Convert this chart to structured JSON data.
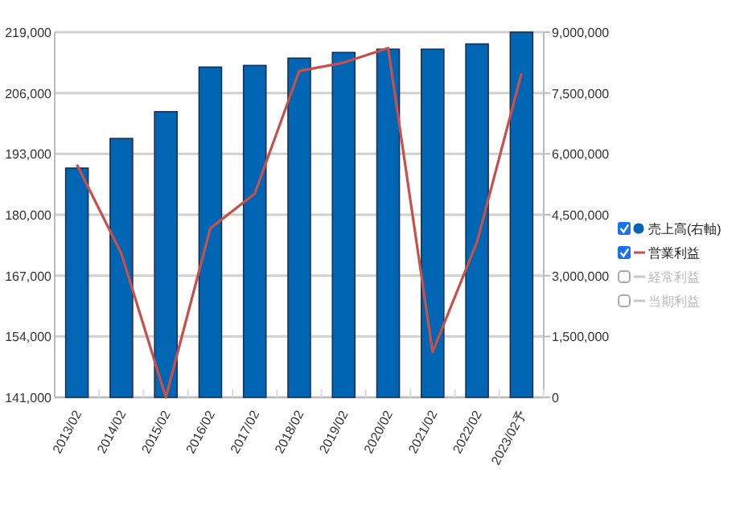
{
  "chart_data": {
    "type": "bar",
    "categories": [
      "2013/02",
      "2014/02",
      "2015/02",
      "2016/02",
      "2017/02",
      "2018/02",
      "2019/02",
      "2020/02",
      "2021/02",
      "2022/02",
      "2023/02予"
    ],
    "series": [
      {
        "name": "売上高(右軸)",
        "axis": "y2",
        "color": "#0066b3",
        "values": [
          5650000,
          6380000,
          7040000,
          8140000,
          8180000,
          8360000,
          8500000,
          8580000,
          8580000,
          8710000,
          9000000
        ]
      },
      {
        "name": "営業利益",
        "type": "line",
        "color": "#c8504b",
        "values": [
          190700,
          171700,
          141000,
          177100,
          184500,
          210700,
          212500,
          215600,
          150700,
          174200,
          210200
        ]
      },
      {
        "name": "経常利益",
        "type": "line",
        "color": "#c8c8c8",
        "values": [
          null,
          null,
          null,
          null,
          null,
          null,
          null,
          null,
          null,
          null,
          null
        ]
      },
      {
        "name": "当期利益",
        "type": "line",
        "color": "#c8c8c8",
        "values": [
          null,
          null,
          null,
          null,
          null,
          null,
          null,
          null,
          null,
          null,
          null
        ]
      }
    ],
    "ylim": [
      141000,
      219000
    ],
    "yticks": [
      {
        "value": 141000,
        "label": "141,000"
      },
      {
        "value": 154000,
        "label": "154,000"
      },
      {
        "value": 167000,
        "label": "167,000"
      },
      {
        "value": 180000,
        "label": "180,000"
      },
      {
        "value": 193000,
        "label": "193,000"
      },
      {
        "value": 206000,
        "label": "206,000"
      },
      {
        "value": 219000,
        "label": "219,000"
      }
    ],
    "y2lim": [
      0,
      9000000
    ],
    "y2ticks": [
      0,
      {
        "value": 1500000,
        "label": "1,500,000"
      },
      {
        "value": 3000000,
        "label": "3,000,000"
      },
      {
        "value": 4500000,
        "label": "4,500,000"
      },
      {
        "value": 6000000,
        "label": "6,000,000"
      },
      {
        "value": 7500000,
        "label": "7,500,000"
      },
      {
        "value": 9000000,
        "label": "9,000,000"
      }
    ],
    "grid": "y",
    "legend": "right"
  }
}
